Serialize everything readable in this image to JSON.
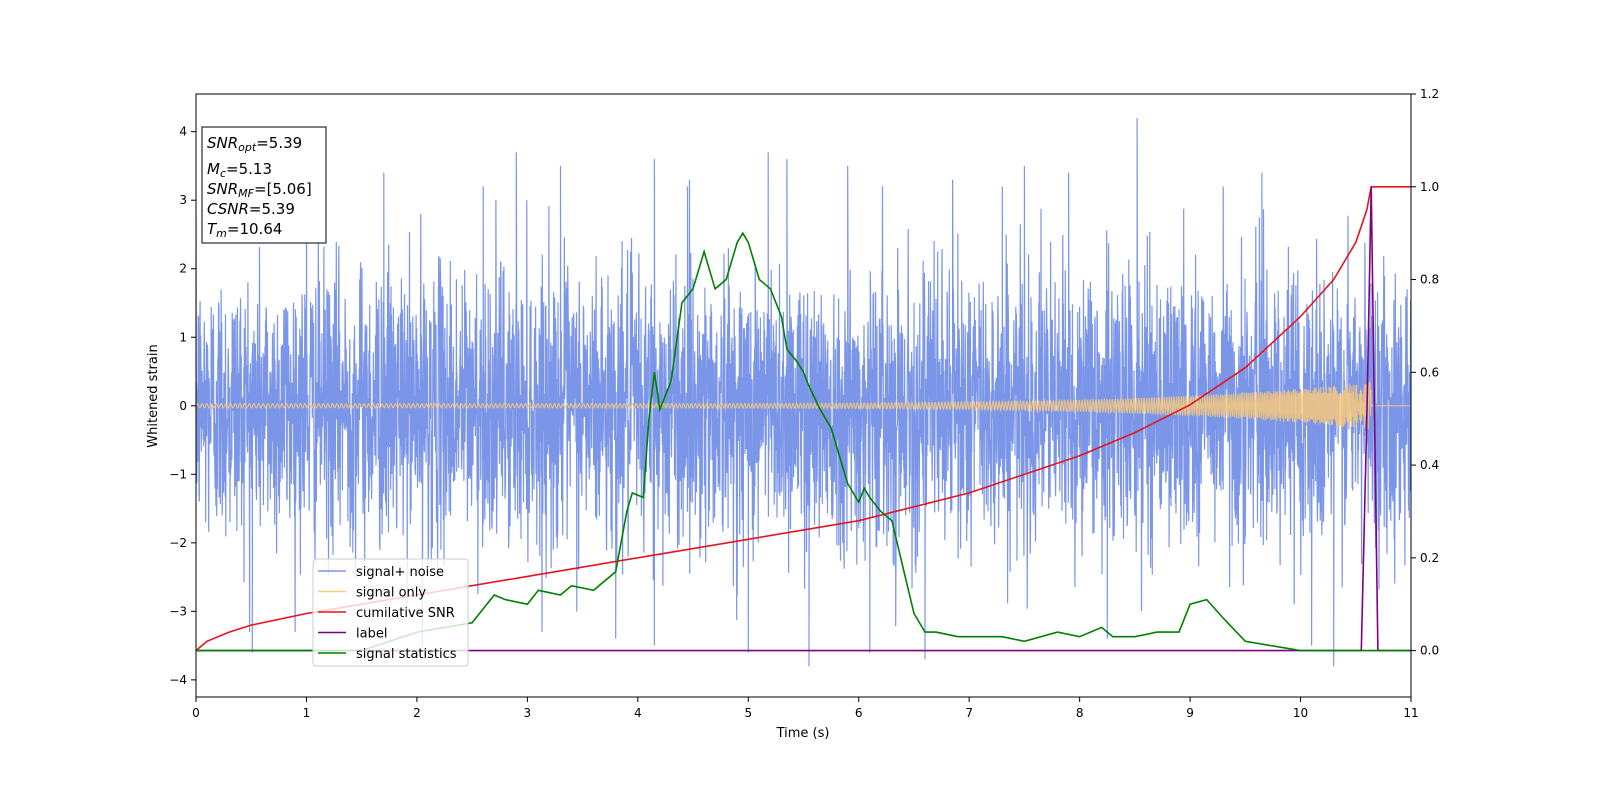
{
  "chart_data": {
    "type": "line",
    "xlabel": "Time (s)",
    "ylabel": "Whitened strain",
    "xlim": [
      0,
      11
    ],
    "ylim": [
      -4.25,
      4.55
    ],
    "y2lim": [
      -0.1,
      1.2
    ],
    "xticks": [
      "0",
      "1",
      "2",
      "3",
      "4",
      "5",
      "6",
      "7",
      "8",
      "9",
      "10",
      "11"
    ],
    "yticks": [
      "−4",
      "−3",
      "−2",
      "−1",
      "0",
      "1",
      "2",
      "3",
      "4"
    ],
    "y2ticks": [
      "0.0",
      "0.2",
      "0.4",
      "0.6",
      "0.8",
      "1.0",
      "1.2"
    ],
    "grid": false,
    "legend_position": "lower-left",
    "info_box": {
      "snr_opt": {
        "base": "SNR",
        "sub": "opt",
        "value": "=5.39"
      },
      "mc": {
        "base": "M",
        "sub": "c",
        "value": "=5.13"
      },
      "snr_mf": {
        "base": "SNR",
        "sub": "MF",
        "value": "=[5.06]"
      },
      "csnr": {
        "base": "CSNR",
        "value": "=5.39"
      },
      "tm": {
        "base": "T",
        "sub": "m",
        "value": "=10.64"
      }
    },
    "series": [
      {
        "name": "signal+ noise",
        "axis": "left",
        "color": "#7b96e8",
        "noise_sigma": 1.0,
        "spikes": [
          [
            0.51,
            -3.6
          ],
          [
            1.0,
            3.3
          ],
          [
            1.7,
            3.4
          ],
          [
            2.05,
            -3.5
          ],
          [
            2.6,
            3.2
          ],
          [
            2.9,
            3.7
          ],
          [
            3.3,
            3.5
          ],
          [
            3.8,
            -3.4
          ],
          [
            4.15,
            -3.5
          ],
          [
            4.15,
            3.6
          ],
          [
            4.45,
            3.2
          ],
          [
            5.0,
            -3.6
          ],
          [
            5.18,
            3.7
          ],
          [
            5.35,
            3.6
          ],
          [
            5.55,
            -3.8
          ],
          [
            5.9,
            3.5
          ],
          [
            6.1,
            -3.6
          ],
          [
            6.6,
            -3.7
          ],
          [
            6.85,
            3.3
          ],
          [
            7.3,
            3.2
          ],
          [
            7.5,
            3.5
          ],
          [
            7.9,
            3.4
          ],
          [
            8.25,
            -3.4
          ],
          [
            8.52,
            4.2
          ],
          [
            9.3,
            3.2
          ],
          [
            9.65,
            3.4
          ],
          [
            10.1,
            -3.5
          ],
          [
            10.3,
            -3.8
          ]
        ]
      },
      {
        "name": "signal only",
        "axis": "left",
        "color": "#f7c97c",
        "chirp": {
          "t_merge": 10.64,
          "amp_start": 0.03,
          "amp_end": 0.35
        }
      },
      {
        "name": "cumilative SNR",
        "axis": "right",
        "color": "#e8141c",
        "x": [
          0,
          0.1,
          0.3,
          0.5,
          1,
          1.5,
          2,
          3,
          4,
          5,
          6,
          7,
          8,
          8.5,
          9,
          9.5,
          10,
          10.3,
          10.5,
          10.6,
          10.64,
          11
        ],
        "y": [
          0.0,
          0.02,
          0.04,
          0.055,
          0.08,
          0.1,
          0.12,
          0.16,
          0.2,
          0.24,
          0.28,
          0.34,
          0.42,
          0.47,
          0.53,
          0.61,
          0.72,
          0.8,
          0.88,
          0.95,
          1.0,
          1.0
        ]
      },
      {
        "name": "label",
        "axis": "right",
        "color": "#800080",
        "x": [
          0,
          10.55,
          10.6,
          10.64,
          10.7,
          11
        ],
        "y": [
          0,
          0,
          0.5,
          1.0,
          0,
          0
        ]
      },
      {
        "name": "signal statistics",
        "axis": "right",
        "color": "#008000",
        "x": [
          0,
          0.5,
          1,
          1.5,
          2,
          2.5,
          2.7,
          2.8,
          3,
          3.1,
          3.3,
          3.4,
          3.6,
          3.8,
          3.9,
          3.95,
          4.05,
          4.1,
          4.15,
          4.2,
          4.3,
          4.4,
          4.5,
          4.6,
          4.65,
          4.7,
          4.8,
          4.9,
          4.95,
          5.0,
          5.1,
          5.2,
          5.3,
          5.35,
          5.45,
          5.5,
          5.55,
          5.65,
          5.75,
          5.8,
          5.9,
          6.0,
          6.05,
          6.1,
          6.2,
          6.3,
          6.4,
          6.5,
          6.6,
          6.7,
          6.9,
          7.3,
          7.5,
          7.8,
          8.0,
          8.2,
          8.3,
          8.5,
          8.7,
          8.9,
          9.0,
          9.15,
          9.3,
          9.5,
          10,
          10.5,
          11
        ],
        "y": [
          0.0,
          0.0,
          0.0,
          0.0,
          0.04,
          0.06,
          0.12,
          0.11,
          0.1,
          0.13,
          0.12,
          0.14,
          0.13,
          0.17,
          0.3,
          0.34,
          0.33,
          0.5,
          0.6,
          0.52,
          0.58,
          0.75,
          0.78,
          0.86,
          0.82,
          0.78,
          0.8,
          0.88,
          0.9,
          0.88,
          0.8,
          0.78,
          0.72,
          0.65,
          0.62,
          0.6,
          0.57,
          0.52,
          0.48,
          0.44,
          0.36,
          0.32,
          0.35,
          0.33,
          0.3,
          0.28,
          0.18,
          0.08,
          0.04,
          0.04,
          0.03,
          0.03,
          0.02,
          0.04,
          0.03,
          0.05,
          0.03,
          0.03,
          0.04,
          0.04,
          0.1,
          0.11,
          0.07,
          0.02,
          0.0,
          0.0,
          0.0
        ]
      }
    ]
  }
}
